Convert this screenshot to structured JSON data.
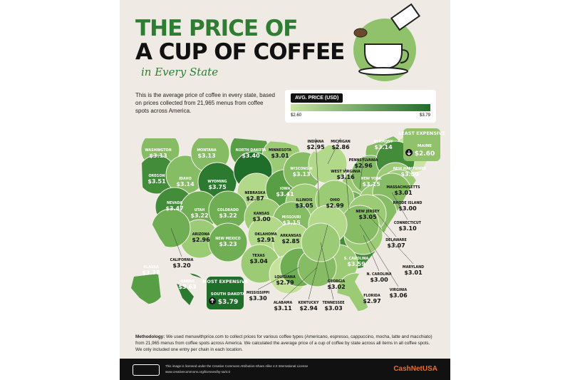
{
  "header": {
    "title_line1": "THE PRICE OF",
    "title_line2": "A CUP OF COFFEE",
    "subtitle": "in Every State"
  },
  "intro": "This is the average price of coffee in every state, based on prices collected from 21,965 menus from coffee spots across America.",
  "legend": {
    "title": "AVG. PRICE (USD)",
    "min": "$2.60",
    "max": "$3.79",
    "color_low": "#c9e4a0",
    "color_high": "#1f6e2a"
  },
  "callouts": {
    "most": "MOST EXPENSIVE",
    "least": "LEAST EXPENSIVE"
  },
  "states": [
    {
      "name": "WASHINGTON",
      "price": "$3.13",
      "color": "#86bd64"
    },
    {
      "name": "OREGON",
      "price": "$3.51",
      "color": "#438c3a"
    },
    {
      "name": "IDAHO",
      "price": "$3.14",
      "color": "#86bd64"
    },
    {
      "name": "MONTANA",
      "price": "$3.13",
      "color": "#86bd64"
    },
    {
      "name": "NORTH DAKOTA",
      "price": "$3.40",
      "color": "#589e44"
    },
    {
      "name": "MINNESOTA",
      "price": "$3.01",
      "color": "#9ccb76"
    },
    {
      "name": "WYOMING",
      "price": "$3.75",
      "color": "#2c7a30"
    },
    {
      "name": "SOUTH DAKOTA",
      "price": "$3.79",
      "color": "#1f6e2a"
    },
    {
      "name": "NEBRASKA",
      "price": "$2.87",
      "color": "#b2d88a"
    },
    {
      "name": "IOWA",
      "price": "$3.41",
      "color": "#589e44"
    },
    {
      "name": "WISCONSIN",
      "price": "$3.13",
      "color": "#86bd64"
    },
    {
      "name": "INDIANA",
      "price": "$2.95",
      "color": "#b2d88a"
    },
    {
      "name": "MICHIGAN",
      "price": "$2.86",
      "color": "#b2d88a"
    },
    {
      "name": "VERMONT",
      "price": "$3.14",
      "color": "#86bd64"
    },
    {
      "name": "MAINE",
      "price": "$2.60",
      "color": "#c9e4a0"
    },
    {
      "name": "PENNSYLVANIA",
      "price": "$2.96",
      "color": "#9ccb76"
    },
    {
      "name": "WEST VIRGINIA",
      "price": "$3.16",
      "color": "#6fae52"
    },
    {
      "name": "NEW YORK",
      "price": "$3.15",
      "color": "#86bd64"
    },
    {
      "name": "NEW HAMPSHIRE",
      "price": "$3.50",
      "color": "#438c3a"
    },
    {
      "name": "MASSACHUSETTS",
      "price": "$3.01",
      "color": "#9ccb76"
    },
    {
      "name": "NEVADA",
      "price": "$3.47",
      "color": "#438c3a"
    },
    {
      "name": "UTAH",
      "price": "$3.22",
      "color": "#6fae52"
    },
    {
      "name": "COLORADO",
      "price": "$3.22",
      "color": "#6fae52"
    },
    {
      "name": "KANSAS",
      "price": "$3.00",
      "color": "#9ccb76"
    },
    {
      "name": "ILLINOIS",
      "price": "$3.05",
      "color": "#9ccb76"
    },
    {
      "name": "OHIO",
      "price": "$2.99",
      "color": "#9ccb76"
    },
    {
      "name": "MISSOURI",
      "price": "$3.15",
      "color": "#86bd64"
    },
    {
      "name": "RHODE ISLAND",
      "price": "$3.00",
      "color": "#9ccb76"
    },
    {
      "name": "NEW JERSEY",
      "price": "$3.05",
      "color": "#9ccb76"
    },
    {
      "name": "CONNECTICUT",
      "price": "$3.10",
      "color": "#86bd64"
    },
    {
      "name": "ARIZONA",
      "price": "$2.96",
      "color": "#9ccb76"
    },
    {
      "name": "NEW MEXICO",
      "price": "$3.23",
      "color": "#6fae52"
    },
    {
      "name": "OKLAHOMA",
      "price": "$2.91",
      "color": "#b2d88a"
    },
    {
      "name": "ARKANSAS",
      "price": "$2.85",
      "color": "#b2d88a"
    },
    {
      "name": "DELAWARE",
      "price": "$3.07",
      "color": "#86bd64"
    },
    {
      "name": "CALIFORNIA",
      "price": "$3.20",
      "color": "#6fae52"
    },
    {
      "name": "TEXAS",
      "price": "$3.04",
      "color": "#9ccb76"
    },
    {
      "name": "S. CAROLINA",
      "price": "$3.59",
      "color": "#438c3a"
    },
    {
      "name": "MARYLAND",
      "price": "$3.01",
      "color": "#9ccb76"
    },
    {
      "name": "ALASKA",
      "price": "$3.38",
      "color": "#589e44"
    },
    {
      "name": "LOUISIANA",
      "price": "$2.79",
      "color": "#c5e29a"
    },
    {
      "name": "N. CAROLINA",
      "price": "$3.00",
      "color": "#9ccb76"
    },
    {
      "name": "HAWAII",
      "price": "$3.63",
      "color": "#2c7a30"
    },
    {
      "name": "GEORGIA",
      "price": "$3.02",
      "color": "#9ccb76"
    },
    {
      "name": "FLORIDA",
      "price": "$2.97",
      "color": "#9ccb76"
    },
    {
      "name": "VIRGINIA",
      "price": "$3.06",
      "color": "#86bd64"
    },
    {
      "name": "MISSISSIPPI",
      "price": "$3.30",
      "color": "#6fae52"
    },
    {
      "name": "ALABAMA",
      "price": "$3.11",
      "color": "#86bd64"
    },
    {
      "name": "KENTUCKY",
      "price": "$2.94",
      "color": "#b2d88a"
    },
    {
      "name": "TENNESSEE",
      "price": "$3.03",
      "color": "#9ccb76"
    }
  ],
  "methodology": {
    "label": "Methodology:",
    "text": "We used menuwithprice.com to collect prices for various coffee types (Americano, espresso, cappuccino, mocha, latte and macchiato) from 21,965 menus from coffee spots across America. We calculated the average price of a cup of coffee by state across all items in all coffee spots. We only included one entry per chain in each location."
  },
  "footer": {
    "license": "This image is licensed under the Creative Commons Attribution-Share Alike 4.0 International License",
    "url": "www.creativecommons.org/licenses/by-sa/4.0",
    "brand": "CashNetUSA"
  }
}
